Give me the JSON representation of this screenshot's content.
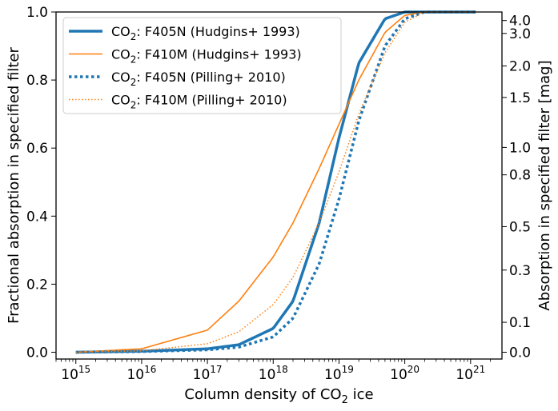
{
  "chart_data": {
    "type": "line",
    "title": "",
    "x_scale": "log",
    "xlim": [
      500000000000000.0,
      3e+21
    ],
    "ylim": [
      -0.02,
      1.0
    ],
    "grid": false,
    "legend_position": "top-left",
    "xlabel": {
      "prefix": "Column density of CO",
      "subscript": "2",
      "suffix": " ice"
    },
    "ylabel": "Fractional absorption in specified filter",
    "y2label": "Absorption in specified filter [mag]",
    "x_ticks": [
      {
        "value": 1000000000000000.0,
        "base": "10",
        "exp": "15"
      },
      {
        "value": 1e+16,
        "base": "10",
        "exp": "16"
      },
      {
        "value": 1e+17,
        "base": "10",
        "exp": "17"
      },
      {
        "value": 1e+18,
        "base": "10",
        "exp": "18"
      },
      {
        "value": 1e+19,
        "base": "10",
        "exp": "19"
      },
      {
        "value": 1e+20,
        "base": "10",
        "exp": "20"
      },
      {
        "value": 1e+21,
        "base": "10",
        "exp": "21"
      }
    ],
    "y_ticks": [
      {
        "value": 0.0,
        "label": "0.0"
      },
      {
        "value": 0.2,
        "label": "0.2"
      },
      {
        "value": 0.4,
        "label": "0.4"
      },
      {
        "value": 0.6,
        "label": "0.6"
      },
      {
        "value": 0.8,
        "label": "0.8"
      },
      {
        "value": 1.0,
        "label": "1.0"
      }
    ],
    "y2_ticks": [
      {
        "mag": 0.0,
        "label": "0.0"
      },
      {
        "mag": 0.1,
        "label": "0.1"
      },
      {
        "mag": 0.3,
        "label": "0.3"
      },
      {
        "mag": 0.5,
        "label": "0.5"
      },
      {
        "mag": 0.8,
        "label": "0.8"
      },
      {
        "mag": 1.0,
        "label": "1.0"
      },
      {
        "mag": 1.5,
        "label": "1.5"
      },
      {
        "mag": 2.0,
        "label": "2.0"
      },
      {
        "mag": 3.0,
        "label": "3.0"
      },
      {
        "mag": 4.0,
        "label": "4.0"
      }
    ],
    "series": [
      {
        "name": "CO₂: F405N (Hudgins+ 1993)",
        "legend_prefix": "CO",
        "legend_sub": "2",
        "legend_suffix": ": F405N (Hudgins+ 1993)",
        "color": "#1f77b4",
        "style": "solid-thick",
        "x": [
          1000000000000000.0,
          1e+16,
          1e+17,
          3e+17,
          1e+18,
          2e+18,
          5e+18,
          1e+19,
          2e+19,
          5e+19,
          1e+20,
          2e+20,
          1.2e+21
        ],
        "y": [
          0.0,
          0.003,
          0.01,
          0.022,
          0.07,
          0.15,
          0.38,
          0.63,
          0.85,
          0.98,
          1.0,
          1.0,
          1.0
        ]
      },
      {
        "name": "CO₂: F410M (Hudgins+ 1993)",
        "legend_prefix": "CO",
        "legend_sub": "2",
        "legend_suffix": ": F410M (Hudgins+ 1993)",
        "color": "#ff7f0e",
        "style": "solid-thin",
        "x": [
          1000000000000000.0,
          1e+16,
          1e+17,
          3e+17,
          1e+18,
          2e+18,
          5e+18,
          1e+19,
          2e+19,
          5e+19,
          1e+20,
          2e+20,
          1.2e+21
        ],
        "y": [
          0.0,
          0.01,
          0.065,
          0.15,
          0.28,
          0.38,
          0.54,
          0.67,
          0.8,
          0.94,
          0.99,
          1.0,
          1.0
        ]
      },
      {
        "name": "CO₂: F405N (Pilling+ 2010)",
        "legend_prefix": "CO",
        "legend_sub": "2",
        "legend_suffix": ": F405N (Pilling+ 2010)",
        "color": "#1f77b4",
        "style": "dotted-thick",
        "x": [
          1000000000000000.0,
          1e+16,
          1e+17,
          3e+17,
          1e+18,
          2e+18,
          5e+18,
          1e+19,
          2e+19,
          5e+19,
          1e+20,
          2e+20,
          1.2e+21
        ],
        "y": [
          0.0,
          0.002,
          0.007,
          0.015,
          0.045,
          0.1,
          0.26,
          0.45,
          0.68,
          0.9,
          0.98,
          1.0,
          1.0
        ]
      },
      {
        "name": "CO₂: F410M (Pilling+ 2010)",
        "legend_prefix": "CO",
        "legend_sub": "2",
        "legend_suffix": ": F410M (Pilling+ 2010)",
        "color": "#ff7f0e",
        "style": "dotted-thin",
        "x": [
          1000000000000000.0,
          1e+16,
          1e+17,
          3e+17,
          1e+18,
          2e+18,
          5e+18,
          1e+19,
          2e+19,
          5e+19,
          1e+20,
          2e+20,
          1.2e+21
        ],
        "y": [
          0.0,
          0.004,
          0.025,
          0.06,
          0.14,
          0.22,
          0.38,
          0.53,
          0.7,
          0.88,
          0.97,
          1.0,
          1.0
        ]
      }
    ]
  }
}
